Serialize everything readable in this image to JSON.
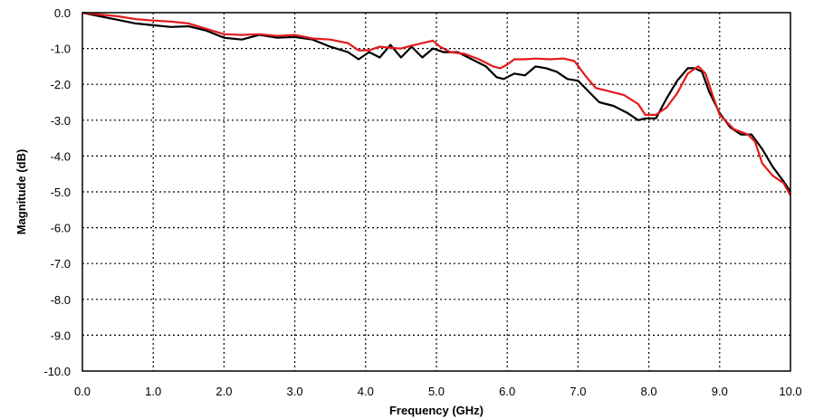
{
  "chart_data": {
    "type": "line",
    "title": "",
    "xlabel": "Frequency (GHz)",
    "ylabel": "Magnitude (dB)",
    "xlim": [
      0.0,
      10.0
    ],
    "ylim": [
      -10.0,
      0.0
    ],
    "x_ticks": [
      "0.0",
      "1.0",
      "2.0",
      "3.0",
      "4.0",
      "5.0",
      "6.0",
      "7.0",
      "8.0",
      "9.0",
      "10.0"
    ],
    "y_ticks": [
      "0.0",
      "-1.0",
      "-2.0",
      "-3.0",
      "-4.0",
      "-5.0",
      "-6.0",
      "-7.0",
      "-8.0",
      "-9.0",
      "-10.0"
    ],
    "grid": true,
    "legend": "none",
    "series": [
      {
        "color": "#000000",
        "x": [
          0.0,
          0.25,
          0.5,
          0.75,
          1.0,
          1.25,
          1.5,
          1.75,
          2.0,
          2.25,
          2.5,
          2.75,
          3.0,
          3.25,
          3.5,
          3.75,
          3.9,
          4.05,
          4.2,
          4.35,
          4.5,
          4.65,
          4.8,
          4.95,
          5.1,
          5.3,
          5.5,
          5.7,
          5.85,
          5.95,
          6.1,
          6.25,
          6.4,
          6.55,
          6.7,
          6.85,
          7.0,
          7.15,
          7.3,
          7.5,
          7.7,
          7.85,
          7.95,
          8.1,
          8.25,
          8.4,
          8.55,
          8.65,
          8.75,
          8.85,
          9.0,
          9.15,
          9.3,
          9.45,
          9.6,
          9.75,
          9.9,
          10.0
        ],
        "y": [
          0.0,
          -0.1,
          -0.2,
          -0.3,
          -0.35,
          -0.4,
          -0.38,
          -0.5,
          -0.7,
          -0.75,
          -0.62,
          -0.7,
          -0.68,
          -0.75,
          -0.95,
          -1.1,
          -1.3,
          -1.1,
          -1.25,
          -0.9,
          -1.25,
          -0.95,
          -1.25,
          -1.0,
          -1.1,
          -1.1,
          -1.3,
          -1.5,
          -1.8,
          -1.85,
          -1.7,
          -1.75,
          -1.5,
          -1.55,
          -1.65,
          -1.85,
          -1.9,
          -2.2,
          -2.5,
          -2.6,
          -2.8,
          -3.0,
          -2.95,
          -2.95,
          -2.4,
          -1.9,
          -1.55,
          -1.55,
          -1.65,
          -2.2,
          -2.8,
          -3.2,
          -3.4,
          -3.4,
          -3.8,
          -4.3,
          -4.7,
          -5.0
        ]
      },
      {
        "color": "#e31a1c",
        "x": [
          0.0,
          0.25,
          0.5,
          0.75,
          1.0,
          1.25,
          1.5,
          1.75,
          2.0,
          2.25,
          2.5,
          2.75,
          3.0,
          3.25,
          3.5,
          3.75,
          3.9,
          4.05,
          4.2,
          4.35,
          4.5,
          4.65,
          4.8,
          4.95,
          5.05,
          5.2,
          5.4,
          5.6,
          5.8,
          5.9,
          6.0,
          6.1,
          6.25,
          6.4,
          6.6,
          6.8,
          6.95,
          7.1,
          7.25,
          7.45,
          7.65,
          7.85,
          7.95,
          8.1,
          8.25,
          8.4,
          8.55,
          8.7,
          8.8,
          8.9,
          9.0,
          9.2,
          9.4,
          9.5,
          9.6,
          9.75,
          9.9,
          10.0
        ],
        "y": [
          0.0,
          -0.05,
          -0.1,
          -0.18,
          -0.22,
          -0.25,
          -0.3,
          -0.45,
          -0.6,
          -0.62,
          -0.6,
          -0.65,
          -0.62,
          -0.72,
          -0.75,
          -0.85,
          -1.05,
          -1.05,
          -0.95,
          -0.98,
          -1.0,
          -0.92,
          -0.85,
          -0.78,
          -0.95,
          -1.1,
          -1.15,
          -1.3,
          -1.5,
          -1.55,
          -1.45,
          -1.3,
          -1.3,
          -1.28,
          -1.3,
          -1.28,
          -1.35,
          -1.75,
          -2.1,
          -2.2,
          -2.3,
          -2.55,
          -2.85,
          -2.85,
          -2.65,
          -2.25,
          -1.7,
          -1.5,
          -1.7,
          -2.3,
          -2.85,
          -3.25,
          -3.4,
          -3.6,
          -4.2,
          -4.55,
          -4.75,
          -5.1
        ]
      }
    ]
  }
}
